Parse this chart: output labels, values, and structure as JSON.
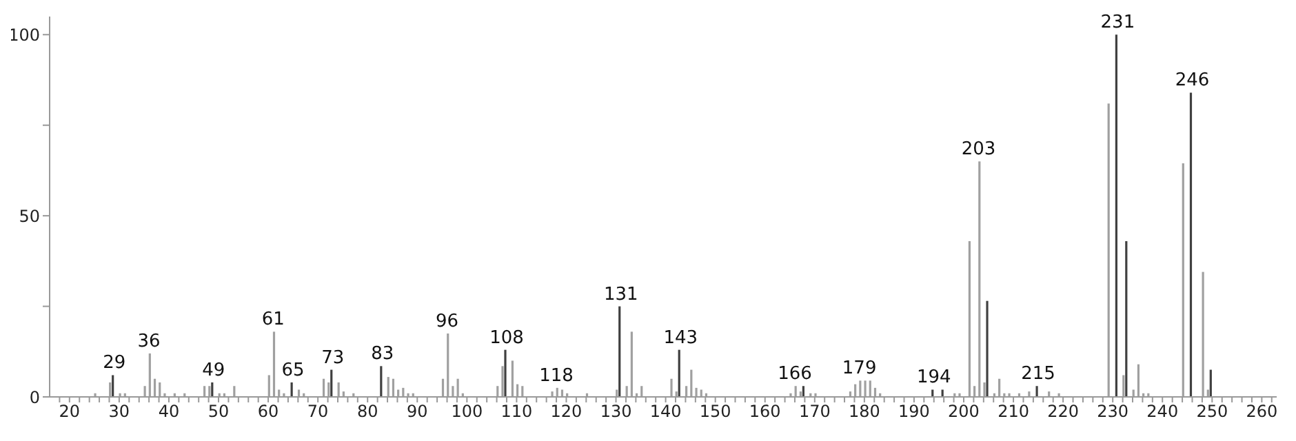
{
  "chart_data": {
    "type": "bar",
    "xlim": [
      16,
      263
    ],
    "ylim": [
      0,
      105
    ],
    "xticks": [
      {
        "value": 18,
        "label": null
      },
      20,
      {
        "value": 22,
        "label": null
      },
      {
        "value": 24,
        "label": null
      },
      {
        "value": 26,
        "label": null
      },
      {
        "value": 28,
        "label": null
      },
      30,
      {
        "value": 32,
        "label": null
      },
      {
        "value": 34,
        "label": null
      },
      {
        "value": 36,
        "label": null
      },
      {
        "value": 38,
        "label": null
      },
      40,
      {
        "value": 42,
        "label": null
      },
      {
        "value": 44,
        "label": null
      },
      {
        "value": 46,
        "label": null
      },
      {
        "value": 48,
        "label": null
      },
      50,
      {
        "value": 52,
        "label": null
      },
      {
        "value": 54,
        "label": null
      },
      {
        "value": 56,
        "label": null
      },
      {
        "value": 58,
        "label": null
      },
      60,
      {
        "value": 62,
        "label": null
      },
      {
        "value": 64,
        "label": null
      },
      {
        "value": 66,
        "label": null
      },
      {
        "value": 68,
        "label": null
      },
      70,
      {
        "value": 72,
        "label": null
      },
      {
        "value": 74,
        "label": null
      },
      {
        "value": 76,
        "label": null
      },
      {
        "value": 78,
        "label": null
      },
      80,
      {
        "value": 82,
        "label": null
      },
      {
        "value": 84,
        "label": null
      },
      {
        "value": 86,
        "label": null
      },
      {
        "value": 88,
        "label": null
      },
      90,
      {
        "value": 92,
        "label": null
      },
      {
        "value": 94,
        "label": null
      },
      {
        "value": 96,
        "label": null
      },
      {
        "value": 98,
        "label": null
      },
      100,
      {
        "value": 102,
        "label": null
      },
      {
        "value": 104,
        "label": null
      },
      {
        "value": 106,
        "label": null
      },
      {
        "value": 108,
        "label": null
      },
      110,
      {
        "value": 112,
        "label": null
      },
      {
        "value": 114,
        "label": null
      },
      {
        "value": 116,
        "label": null
      },
      {
        "value": 118,
        "label": null
      },
      120,
      {
        "value": 122,
        "label": null
      },
      {
        "value": 124,
        "label": null
      },
      {
        "value": 126,
        "label": null
      },
      {
        "value": 128,
        "label": null
      },
      130,
      {
        "value": 132,
        "label": null
      },
      {
        "value": 134,
        "label": null
      },
      {
        "value": 136,
        "label": null
      },
      {
        "value": 138,
        "label": null
      },
      140,
      {
        "value": 142,
        "label": null
      },
      {
        "value": 144,
        "label": null
      },
      {
        "value": 146,
        "label": null
      },
      {
        "value": 148,
        "label": null
      },
      150,
      {
        "value": 152,
        "label": null
      },
      {
        "value": 154,
        "label": null
      },
      {
        "value": 156,
        "label": null
      },
      {
        "value": 158,
        "label": null
      },
      160,
      {
        "value": 162,
        "label": null
      },
      {
        "value": 164,
        "label": null
      },
      {
        "value": 166,
        "label": null
      },
      {
        "value": 168,
        "label": null
      },
      170,
      {
        "value": 172,
        "label": null
      },
      {
        "value": 174,
        "label": null
      },
      {
        "value": 176,
        "label": null
      },
      {
        "value": 178,
        "label": null
      },
      180,
      {
        "value": 182,
        "label": null
      },
      {
        "value": 184,
        "label": null
      },
      {
        "value": 186,
        "label": null
      },
      {
        "value": 188,
        "label": null
      },
      190,
      {
        "value": 192,
        "label": null
      },
      {
        "value": 194,
        "label": null
      },
      {
        "value": 196,
        "label": null
      },
      {
        "value": 198,
        "label": null
      },
      200,
      {
        "value": 202,
        "label": null
      },
      {
        "value": 204,
        "label": null
      },
      {
        "value": 206,
        "label": null
      },
      {
        "value": 208,
        "label": null
      },
      210,
      {
        "value": 212,
        "label": null
      },
      {
        "value": 214,
        "label": null
      },
      {
        "value": 216,
        "label": null
      },
      {
        "value": 218,
        "label": null
      },
      220,
      {
        "value": 222,
        "label": null
      },
      {
        "value": 224,
        "label": null
      },
      {
        "value": 226,
        "label": null
      },
      {
        "value": 228,
        "label": null
      },
      230,
      {
        "value": 232,
        "label": null
      },
      {
        "value": 234,
        "label": null
      },
      {
        "value": 236,
        "label": null
      },
      {
        "value": 238,
        "label": null
      },
      240,
      {
        "value": 242,
        "label": null
      },
      {
        "value": 244,
        "label": null
      },
      {
        "value": 246,
        "label": null
      },
      {
        "value": 248,
        "label": null
      },
      250,
      {
        "value": 252,
        "label": null
      },
      {
        "value": 254,
        "label": null
      },
      {
        "value": 256,
        "label": null
      },
      {
        "value": 258,
        "label": null
      },
      260,
      {
        "value": 262,
        "label": null
      }
    ],
    "yticks": [
      0,
      {
        "value": 25,
        "label": null
      },
      50,
      {
        "value": 75,
        "label": null
      },
      100
    ],
    "series": [
      {
        "color": "#404040",
        "x": [
          29,
          49,
          65,
          73,
          83,
          108,
          131,
          143,
          168,
          194,
          196,
          205,
          215,
          231,
          233,
          246,
          250
        ],
        "values": [
          6,
          4,
          4,
          7.5,
          8.5,
          13,
          25,
          13,
          3,
          2,
          2,
          26.5,
          3,
          100,
          43,
          84,
          7.5
        ]
      },
      {
        "color": "#a0a0a0",
        "x": [
          25,
          28,
          30,
          31,
          35,
          36,
          37,
          38,
          39,
          41,
          43,
          47,
          48,
          50,
          51,
          53,
          60,
          61,
          62,
          63,
          66,
          67,
          71,
          72,
          74,
          75,
          77,
          84,
          85,
          86,
          87,
          88,
          89,
          95,
          96,
          97,
          98,
          99,
          106,
          107,
          109,
          110,
          111,
          117,
          118,
          119,
          120,
          124,
          130,
          132,
          133,
          134,
          135,
          141,
          142,
          144,
          145,
          146,
          147,
          148,
          165,
          166,
          167,
          169,
          170,
          177,
          178,
          179,
          180,
          181,
          182,
          183,
          198,
          199,
          201,
          202,
          203,
          204,
          206,
          207,
          208,
          209,
          211,
          213,
          217,
          219,
          229,
          232,
          234,
          235,
          236,
          237,
          244,
          248,
          249
        ],
        "values": [
          1,
          4,
          1,
          1,
          3,
          12,
          5,
          4,
          1,
          1,
          1,
          3,
          3,
          1,
          1,
          3,
          6,
          18,
          2,
          1,
          2,
          1,
          5,
          4,
          4,
          1.5,
          1,
          5.5,
          5,
          2,
          2.5,
          1,
          1,
          5,
          17.5,
          3,
          5,
          1,
          3,
          8.5,
          10,
          3.5,
          3,
          1.5,
          2.5,
          2,
          1,
          1,
          2,
          3,
          18,
          1,
          3,
          5,
          1.5,
          3,
          7.5,
          2.5,
          2,
          1,
          1,
          3,
          1.5,
          1,
          1,
          1.5,
          3.5,
          4.5,
          4.5,
          4.5,
          2.5,
          1,
          1,
          1,
          43,
          3,
          65,
          4,
          1,
          5,
          1,
          1,
          1,
          1.5,
          1.5,
          1,
          81,
          6,
          2,
          9,
          1,
          1,
          64.5,
          34.5,
          2
        ]
      }
    ],
    "annotations": [
      {
        "text": "29",
        "x": 29,
        "y": 6
      },
      {
        "text": "36",
        "x": 36,
        "y": 12
      },
      {
        "text": "49",
        "x": 49,
        "y": 4
      },
      {
        "text": "61",
        "x": 61,
        "y": 18
      },
      {
        "text": "65",
        "x": 65,
        "y": 4
      },
      {
        "text": "73",
        "x": 73,
        "y": 7.5
      },
      {
        "text": "83",
        "x": 83,
        "y": 8.5
      },
      {
        "text": "96",
        "x": 96,
        "y": 17.5
      },
      {
        "text": "108",
        "x": 108,
        "y": 13
      },
      {
        "text": "118",
        "x": 118,
        "y": 2.5
      },
      {
        "text": "131",
        "x": 131,
        "y": 25
      },
      {
        "text": "143",
        "x": 143,
        "y": 13
      },
      {
        "text": "166",
        "x": 166,
        "y": 3
      },
      {
        "text": "179",
        "x": 179,
        "y": 4.5
      },
      {
        "text": "194",
        "x": 194,
        "y": 2
      },
      {
        "text": "203",
        "x": 203,
        "y": 65
      },
      {
        "text": "215",
        "x": 215,
        "y": 3
      },
      {
        "text": "231",
        "x": 231,
        "y": 100
      },
      {
        "text": "246",
        "x": 246,
        "y": 84
      }
    ],
    "grid": false,
    "legend": false
  }
}
